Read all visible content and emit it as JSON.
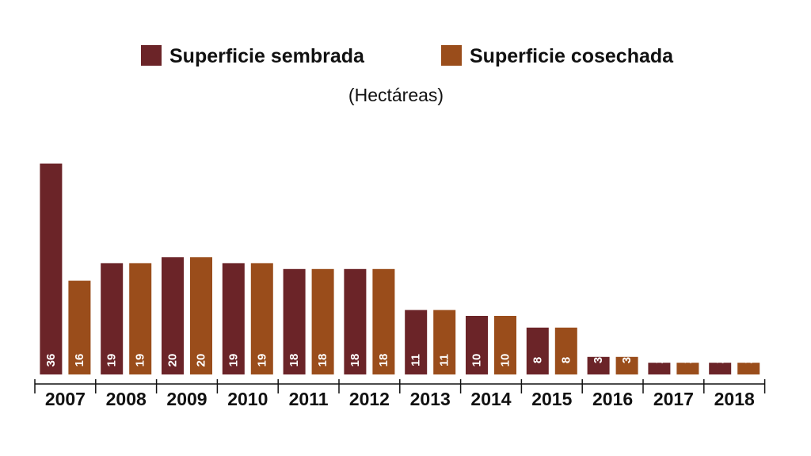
{
  "chart_data": {
    "type": "bar",
    "subtitle": "(Hectáreas)",
    "categories": [
      "2007",
      "2008",
      "2009",
      "2010",
      "2011",
      "2012",
      "2013",
      "2014",
      "2015",
      "2016",
      "2017",
      "2018"
    ],
    "series": [
      {
        "name": "Superficie sembrada",
        "color": "#6b2428",
        "values": [
          36,
          19,
          20,
          19,
          18,
          18,
          11,
          10,
          8,
          3,
          2,
          2
        ]
      },
      {
        "name": "Superficie cosechada",
        "color": "#9a4d1b",
        "values": [
          16,
          19,
          20,
          19,
          18,
          18,
          11,
          10,
          8,
          3,
          2,
          2
        ]
      }
    ],
    "legend_position": "top",
    "data_labels": "vertical-inside-bottom",
    "grid": false
  }
}
